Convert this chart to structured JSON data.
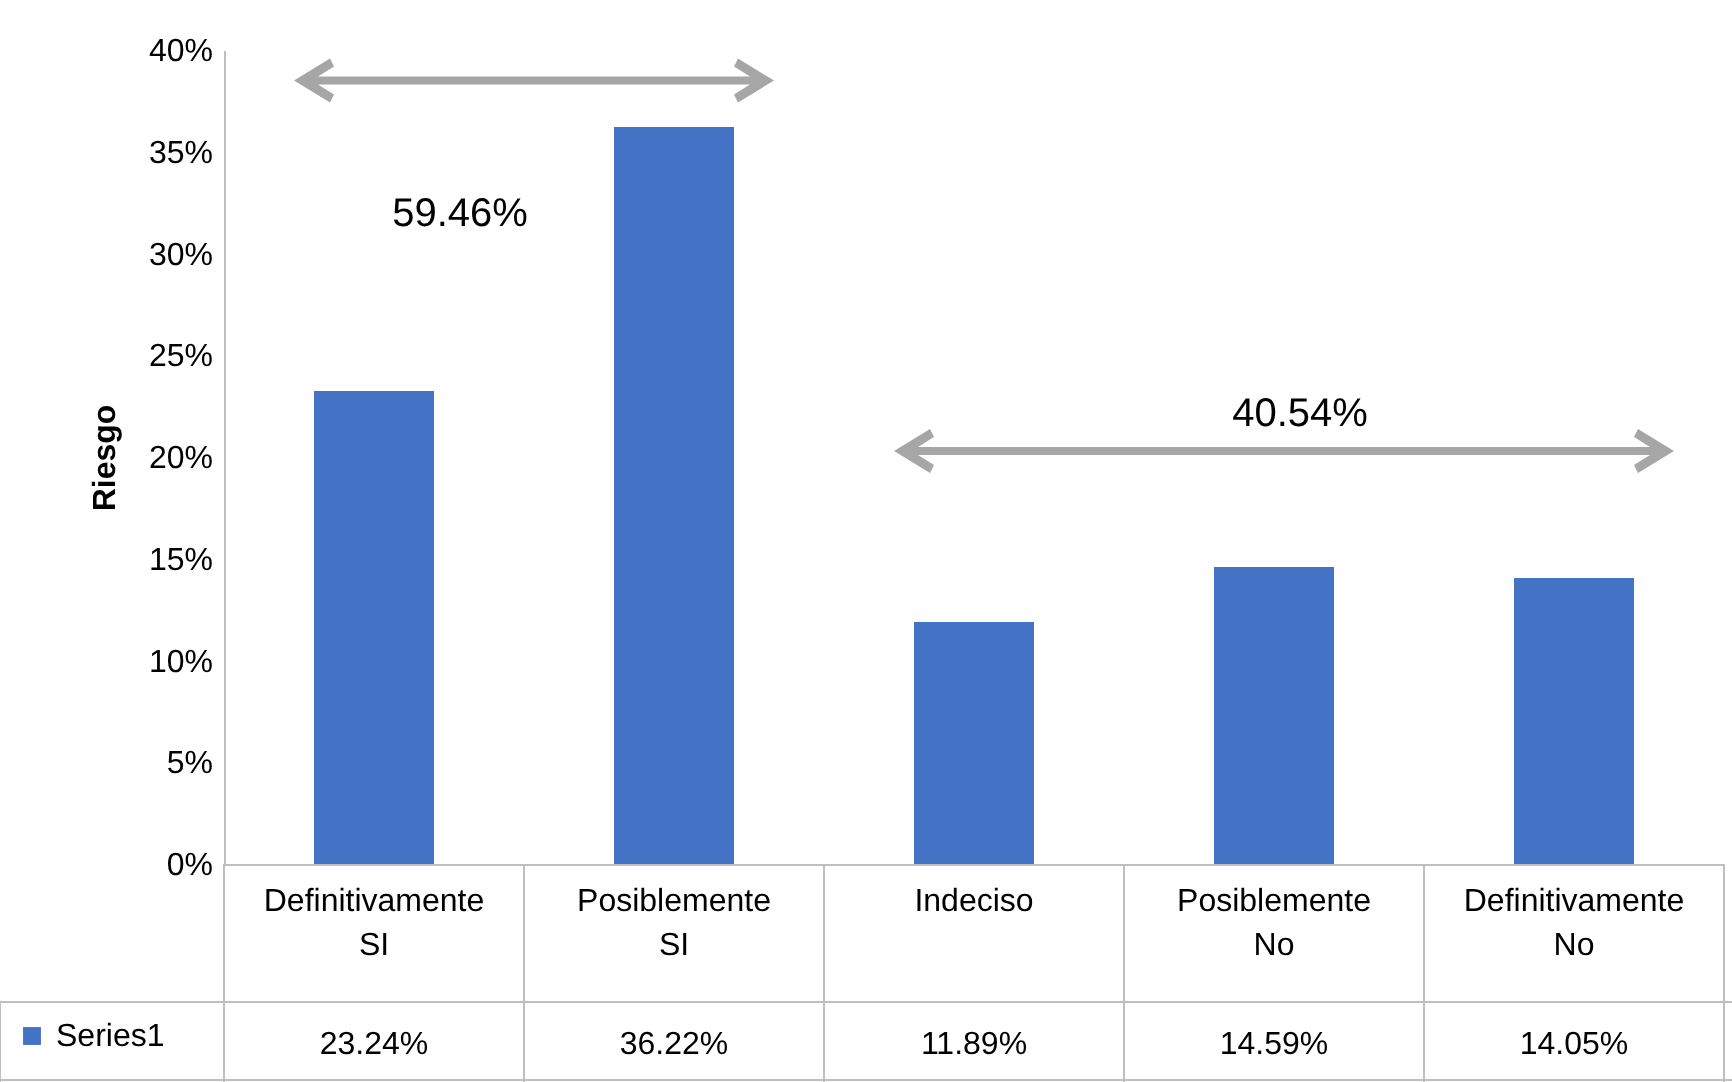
{
  "chart_data": {
    "type": "bar",
    "ylabel": "Riesgo",
    "categories": [
      "Definitivamente SI",
      "Posiblemente SI",
      "Indeciso",
      "Posiblemente No",
      "Definitivamente No"
    ],
    "series": [
      {
        "name": "Series1",
        "color": "#4472c4",
        "values": [
          23.24,
          36.22,
          11.89,
          14.59,
          14.05
        ],
        "value_labels": [
          "23.24%",
          "36.22%",
          "11.89%",
          "14.59%",
          "14.05%"
        ]
      }
    ],
    "ylim": [
      0,
      40
    ],
    "yticks": [
      {
        "value": 0,
        "label": "0%"
      },
      {
        "value": 5,
        "label": "5%"
      },
      {
        "value": 10,
        "label": "10%"
      },
      {
        "value": 15,
        "label": "15%"
      },
      {
        "value": 20,
        "label": "20%"
      },
      {
        "value": 25,
        "label": "25%"
      },
      {
        "value": 30,
        "label": "30%"
      },
      {
        "value": 35,
        "label": "35%"
      },
      {
        "value": 40,
        "label": "40%"
      }
    ],
    "annotations": [
      "59.46%",
      "40.54%"
    ],
    "legend": "bottom left"
  }
}
